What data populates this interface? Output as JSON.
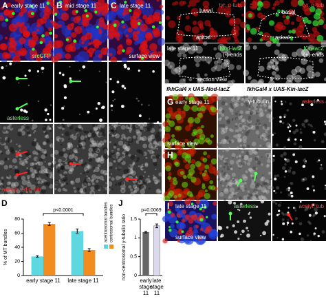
{
  "figure": {
    "A": {
      "label": "A",
      "text": "early stage 11"
    },
    "B": {
      "label": "B",
      "text": "mid stage 11"
    },
    "C": {
      "label": "C",
      "text": "late stage 11"
    },
    "marker_src": "srcGFP",
    "view_surface": "surface view",
    "marker_asterless": "asterless",
    "marker_acetyl": "acetylated α-tub",
    "E": {
      "label": "E",
      "stain": "tyr. α-tub.",
      "basal": "basal",
      "apical": "apical",
      "stage": "late stage 11",
      "reporter": "Nod-lacZ",
      "ends": "(-)-ends",
      "view": "section view",
      "genotype": "fkhGal4 x UAS-Nod-lacZ"
    },
    "F": {
      "label": "F",
      "stain": "tyr. α-tub",
      "basal": "basal",
      "apical": "apical",
      "reporter": "Kin-lacZ",
      "ends": "(+)-ends",
      "genotype": "fkhGal4 x UAS-Kin-lacZ"
    },
    "G": {
      "label": "G",
      "stage": "early stage 11",
      "view": "surface view",
      "gamma": "γ-tubulin",
      "asterless": "asterless"
    },
    "H": {
      "label": "H"
    },
    "I": {
      "label": "I",
      "stage": "late stage 11",
      "view": "surface view",
      "asterless": "asterless",
      "acetyl": "acetyl. tub"
    }
  },
  "chart_data": [
    {
      "type": "bar",
      "label": "D",
      "y_label": "% of MT bundles",
      "categories": [
        "early stage 11",
        "late stage 11"
      ],
      "ylim": [
        0,
        80
      ],
      "yticks": [
        0,
        20,
        40,
        60,
        80
      ],
      "series": [
        {
          "name": "acentrosomal bundles",
          "color": "#5ed8e0",
          "values": [
            27,
            63
          ],
          "errors": [
            1,
            3
          ]
        },
        {
          "name": "centrosomal bundles",
          "color": "#f28c1e",
          "values": [
            73,
            36
          ],
          "errors": [
            2,
            2
          ]
        }
      ],
      "annotation": "p<0.0001"
    },
    {
      "type": "bar",
      "label": "J",
      "y_label": "non-centrosomal γ-tubulin ratio",
      "categories": [
        "early stage 11",
        "late stage 11"
      ],
      "ylim": [
        0,
        1.5
      ],
      "yticks": [
        0,
        0.5,
        1,
        1.5
      ],
      "values": [
        1.15,
        1.32
      ],
      "errors": [
        0.02,
        0.05
      ],
      "colors": [
        "#666666",
        "#dcd8ee"
      ],
      "annotation": "p=0.0069"
    }
  ]
}
